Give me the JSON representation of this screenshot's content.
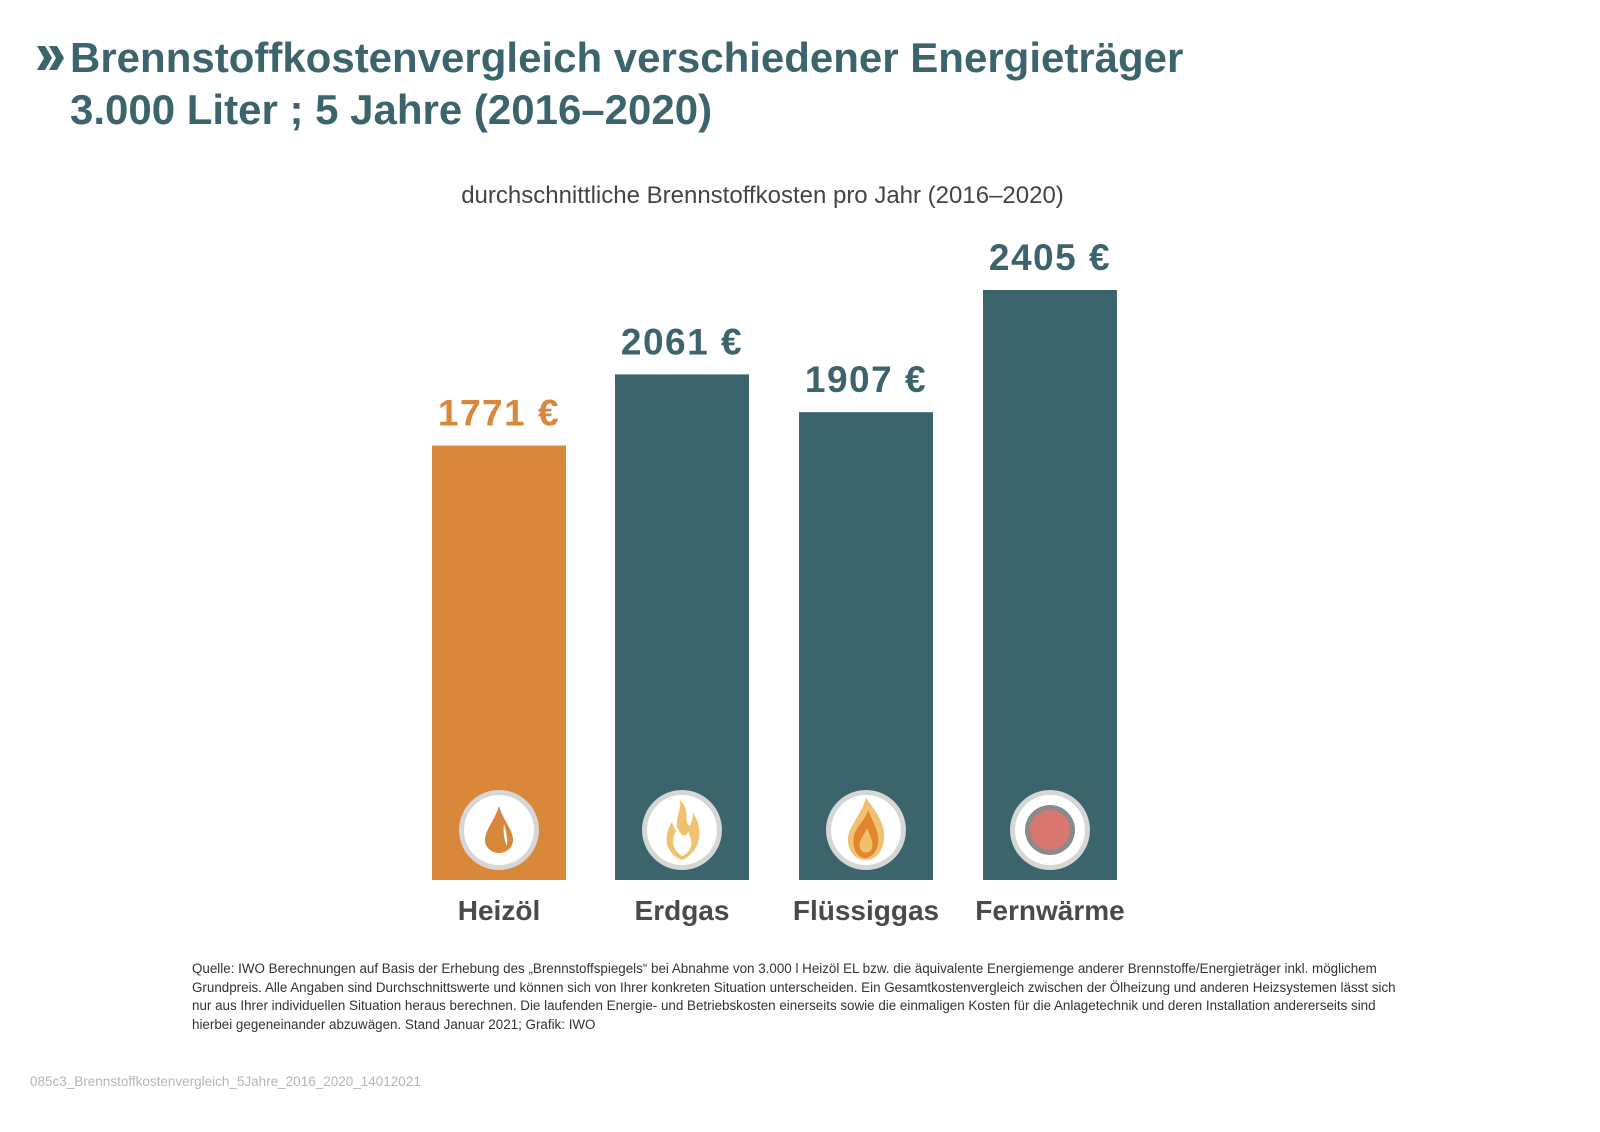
{
  "header": {
    "title_line1": "Brennstoffkostenvergleich verschiedener Energieträger",
    "title_line2": "3.000 Liter ; 5 Jahre (2016–2020)",
    "chevron_icon": "double-chevron-right-icon"
  },
  "chart_data": {
    "type": "bar",
    "title": "durchschnittliche Brennstoffkosten pro Jahr (2016–2020)",
    "categories": [
      "Heizöl",
      "Erdgas",
      "Flüssiggas",
      "Fernwärme"
    ],
    "values": [
      1771,
      2061,
      1907,
      2405
    ],
    "data_labels": [
      "1771 €",
      "2061 €",
      "1907 €",
      "2405 €"
    ],
    "unit": "€",
    "colors": [
      "#d9873a",
      "#3c646c",
      "#3c646c",
      "#3c646c"
    ],
    "label_colors": [
      "#d9873a",
      "#3c646c",
      "#3c646c",
      "#3c646c"
    ],
    "icons": [
      "oil-drop-icon",
      "gas-flame-icon",
      "liquid-gas-flame-icon",
      "district-heating-icon"
    ],
    "ylim": [
      0,
      2405
    ],
    "grid": false,
    "axes_visible": false
  },
  "footer": {
    "source": "Quelle: IWO Berechnungen auf Basis der Erhebung des „Brennstoffspiegels“ bei Abnahme von 3.000 l Heizöl EL bzw. die äquivalente Energiemenge anderer Brennstoffe/Energieträger inkl. möglichem Grundpreis. Alle Angaben sind Durchschnittswerte und können sich von Ihrer konkreten Situation unterscheiden. Ein Gesamtkostenvergleich zwischen der Ölheizung und anderen Heizsystemen lässt sich nur aus Ihrer individuellen Situation heraus berechnen. Die laufenden Energie- und Betriebskosten einerseits sowie die einmaligen Kosten für die Anlagetechnik und deren Installation andererseits sind hierbei gegeneinander abzuwägen. Stand Januar 2021; Grafik: IWO",
    "filename": "085c3_Brennstoffkostenvergleich_5Jahre_2016_2020_14012021"
  }
}
